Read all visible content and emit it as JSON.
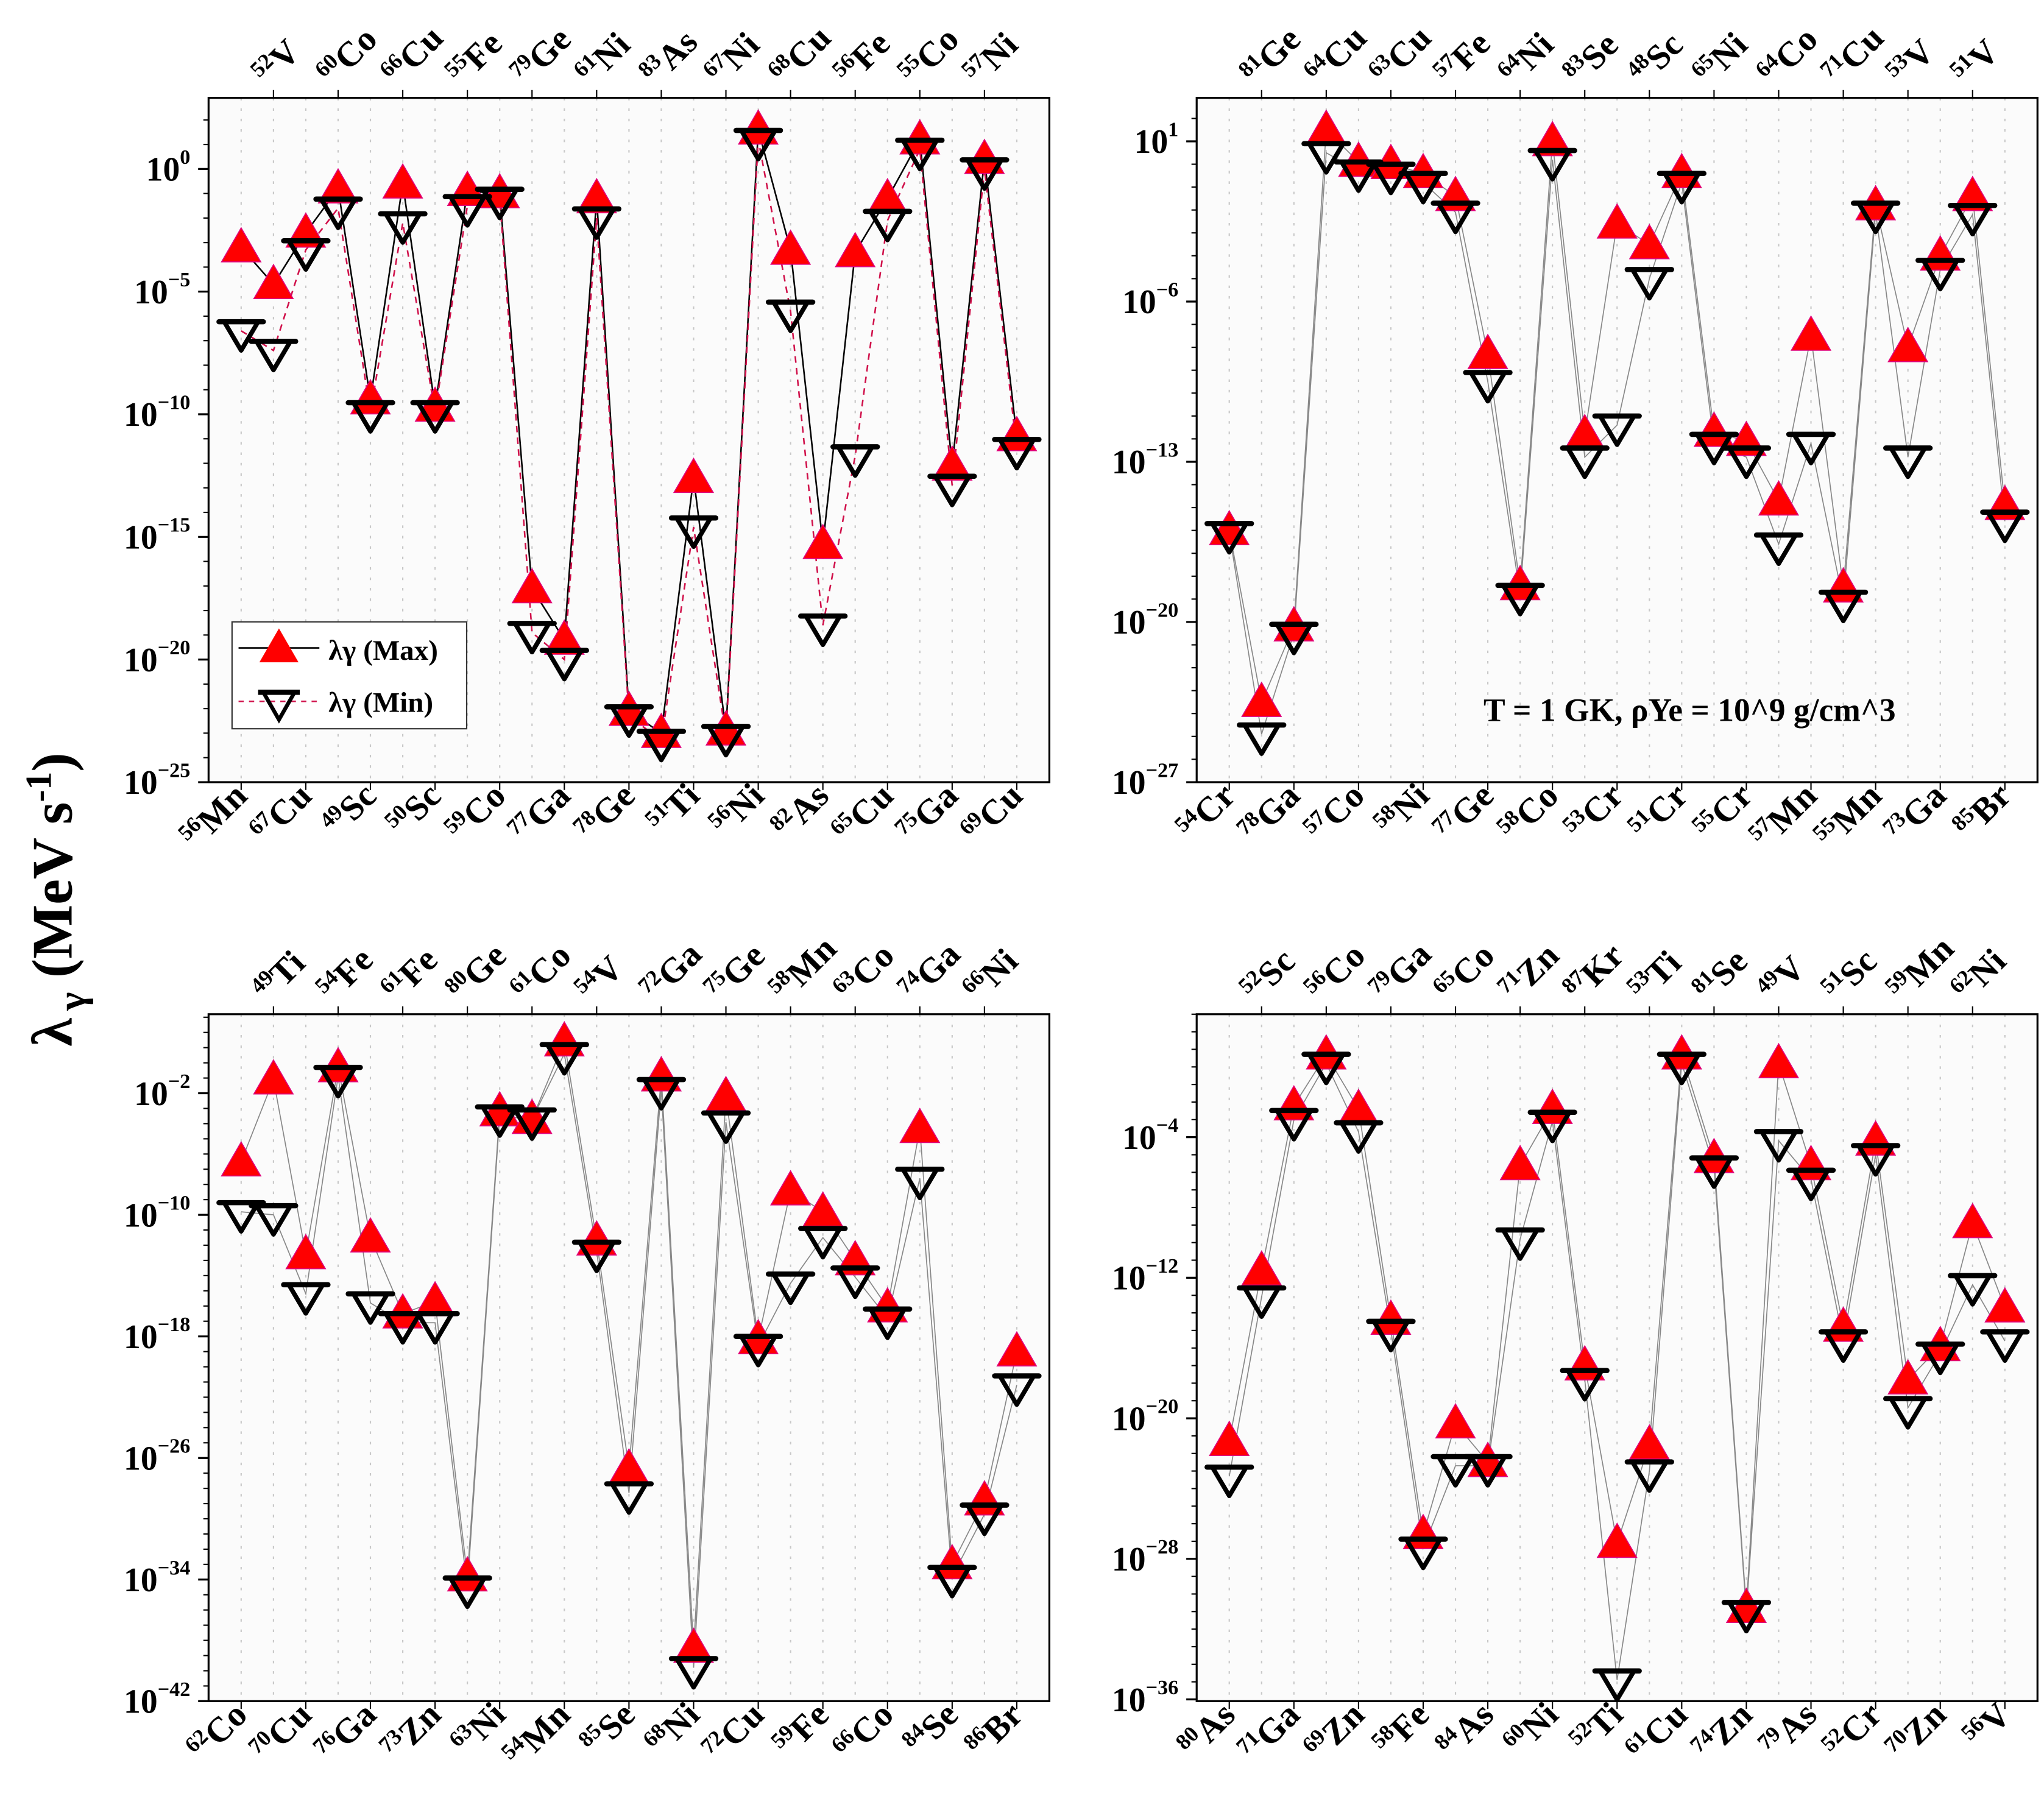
{
  "figure": {
    "ylabel": "λ",
    "ylabel_sub": "γ",
    "ylabel_unit": " (MeV s",
    "ylabel_exp": "-1",
    "ylabel_close": ")"
  },
  "colors": {
    "max": "#ff0000",
    "min": "#000000",
    "grid": "#c8c8c8",
    "line_grey": "#888888"
  },
  "legend": {
    "max_label": "λγ (Max)",
    "min_label": "λγ (Min)",
    "placement": "lower-left of panel 1"
  },
  "annotation": {
    "text": "T = 1 GK, ρYe = 10^9 g/cm^3",
    "panel": 2
  },
  "chart_data": [
    {
      "type": "scatter",
      "yscale": "log",
      "ylim_exp": [
        -25,
        2.9
      ],
      "yticks_exp": [
        0,
        -5,
        -10,
        -15,
        -20,
        -25
      ],
      "grid": "vertical dotted",
      "line_style": {
        "max": "solid black",
        "min": "dashed red"
      },
      "nuclides": [
        "56Mn",
        "52V",
        "67Cu",
        "60Co",
        "49Sc",
        "66Cu",
        "50Sc",
        "55Fe",
        "59Co",
        "79Ge",
        "77Ga",
        "61Ni",
        "78Ge",
        "83As",
        "51Ti",
        "67Ni",
        "56Ni",
        "68Cu",
        "82As",
        "56Fe",
        "65Cu",
        "55Co",
        "75Ga",
        "57Ni",
        "69Cu"
      ],
      "log10_max": [
        -3.2,
        -4.7,
        -2.6,
        -0.8,
        -9.4,
        -0.6,
        -9.7,
        -0.9,
        -1.0,
        -17.1,
        -19.2,
        -1.2,
        -22.1,
        -23.0,
        -12.6,
        -22.9,
        1.6,
        -3.3,
        -15.3,
        -3.4,
        -1.2,
        1.2,
        -12.1,
        0.4,
        -10.9
      ],
      "log10_min": [
        -6.6,
        -7.4,
        -3.3,
        -1.6,
        -9.9,
        -2.2,
        -9.9,
        -1.5,
        -1.2,
        -18.9,
        -20.0,
        -2.0,
        -22.3,
        -23.3,
        -14.6,
        -23.1,
        1.2,
        -5.8,
        -18.6,
        -11.7,
        -2.1,
        0.8,
        -12.9,
        0.0,
        -11.4
      ]
    },
    {
      "type": "scatter",
      "yscale": "log",
      "ylim_exp": [
        -27,
        2.9
      ],
      "yticks_exp": [
        1,
        -6,
        -13,
        -20,
        -27
      ],
      "grid": "vertical dotted",
      "line_style": {
        "max": "thin grey",
        "min": "thin grey"
      },
      "nuclides": [
        "54Cr",
        "81Ge",
        "78Ga",
        "64Cu",
        "57Co",
        "63Cu",
        "58Ni",
        "57Fe",
        "77Ge",
        "64Ni",
        "58Co",
        "83Se",
        "53Cr",
        "48Sc",
        "51Cr",
        "65Ni",
        "55Cr",
        "64Co",
        "57Mn",
        "71Cu",
        "55Mn",
        "53V",
        "73Ga",
        "51V",
        "85Br"
      ],
      "log10_max": [
        -16.0,
        -23.5,
        -20.2,
        1.5,
        0.1,
        0.0,
        -0.4,
        -1.4,
        -8.3,
        -18.4,
        1.0,
        -11.8,
        -2.6,
        -3.5,
        -0.4,
        -11.7,
        -12.1,
        -14.7,
        -7.5,
        -18.5,
        -1.8,
        -8.0,
        -4.0,
        -1.4,
        -14.9
      ],
      "log10_min": [
        -16.1,
        -24.9,
        -20.5,
        0.5,
        -0.3,
        -0.4,
        -0.8,
        -2.1,
        -9.5,
        -18.8,
        0.2,
        -12.8,
        -11.4,
        -5.0,
        -0.8,
        -12.2,
        -12.8,
        -16.6,
        -12.2,
        -19.1,
        -2.1,
        -12.8,
        -4.6,
        -2.2,
        -15.6
      ]
    },
    {
      "type": "scatter",
      "yscale": "log",
      "ylim_exp": [
        -42,
        3.2
      ],
      "yticks_exp": [
        -2,
        -10,
        -18,
        -26,
        -34,
        -42
      ],
      "grid": "vertical dotted",
      "line_style": {
        "max": "thin grey",
        "min": "thin grey"
      },
      "nuclides": [
        "62Co",
        "49Ti",
        "70Cu",
        "54Fe",
        "76Ga",
        "61Fe",
        "73Zn",
        "80Ge",
        "63Ni",
        "61Co",
        "54Mn",
        "54V",
        "85Se",
        "72Ga",
        "68Ni",
        "75Ge",
        "72Cu",
        "58Mn",
        "59Fe",
        "63Co",
        "66Co",
        "74Ga",
        "84Se",
        "66Ni",
        "86Br"
      ],
      "log10_max": [
        -6.5,
        -1.1,
        -12.6,
        -0.3,
        -11.5,
        -16.5,
        -15.7,
        -33.8,
        -3.2,
        -3.7,
        1.4,
        -11.7,
        -26.7,
        -0.9,
        -38.5,
        -2.2,
        -18.2,
        -8.4,
        -9.8,
        -13.0,
        -16.1,
        -4.3,
        -33.0,
        -28.8,
        -19.0
      ],
      "log10_min": [
        -9.8,
        -10.0,
        -15.2,
        -0.9,
        -15.8,
        -17.1,
        -17.1,
        -34.5,
        -3.5,
        -3.7,
        0.6,
        -12.4,
        -28.3,
        -1.7,
        -39.8,
        -3.9,
        -18.6,
        -14.5,
        -11.5,
        -14.1,
        -16.8,
        -7.6,
        -33.8,
        -29.7,
        -21.2
      ]
    },
    {
      "type": "scatter",
      "yscale": "log",
      "ylim_exp": [
        -36.1,
        3.0
      ],
      "yticks_exp": [
        -4,
        -12,
        -20,
        -28,
        -36
      ],
      "grid": "vertical dotted",
      "line_style": {
        "max": "thin grey",
        "min": "thin grey"
      },
      "nuclides": [
        "80As",
        "52Sc",
        "71Ga",
        "56Co",
        "69Zn",
        "79Ga",
        "58Fe",
        "65Co",
        "84As",
        "71Zn",
        "60Ni",
        "87Kr",
        "52Ti",
        "53Ti",
        "61Cu",
        "81Se",
        "74Zn",
        "49V",
        "79As",
        "51Sc",
        "52Cr",
        "59Mn",
        "70Zn",
        "62Ni",
        "56V"
      ],
      "log10_max": [
        -21.3,
        -11.6,
        -2.2,
        0.7,
        -2.4,
        -14.4,
        -26.6,
        -20.3,
        -22.5,
        -5.6,
        -2.4,
        -17.0,
        -27.1,
        -21.5,
        0.7,
        -5.2,
        -30.8,
        0.2,
        -5.6,
        -14.8,
        -4.2,
        -17.8,
        -15.9,
        -8.9,
        -13.7
      ],
      "log10_min": [
        -23.3,
        -13.1,
        -3.0,
        0.2,
        -3.7,
        -15.0,
        -27.4,
        -22.7,
        -22.7,
        -9.8,
        -3.1,
        -17.8,
        -34.9,
        -23.0,
        0.2,
        -5.7,
        -31.0,
        -4.2,
        -6.4,
        -15.6,
        -5.0,
        -19.4,
        -16.3,
        -12.4,
        -15.6
      ]
    }
  ]
}
